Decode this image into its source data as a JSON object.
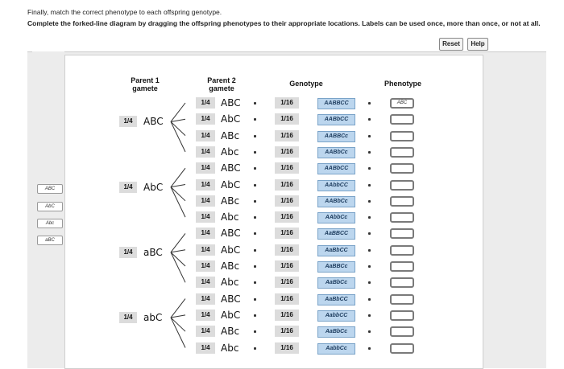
{
  "instructions": {
    "line1": "Finally, match the correct phenotype to each offspring genotype.",
    "line2": "Complete the forked-line diagram by dragging the offspring phenotypes to their appropriate locations. Labels can be used once, more than once, or not at all."
  },
  "buttons": {
    "reset": "Reset",
    "help": "Help"
  },
  "labels": [
    "ABC",
    "AbC",
    "Abc",
    "aBC"
  ],
  "headers": {
    "parent1": "Parent 1\ngamete",
    "parent2": "Parent 2\ngamete",
    "genotype": "Genotype",
    "phenotype": "Phenotype"
  },
  "parent1": [
    {
      "fraction": "1/4",
      "gamete": "ABC"
    },
    {
      "fraction": "1/4",
      "gamete": "AbC"
    },
    {
      "fraction": "1/4",
      "gamete": "aBC"
    },
    {
      "fraction": "1/4",
      "gamete": "abC"
    }
  ],
  "parent2": [
    {
      "fraction": "1/4",
      "gamete": "ABC"
    },
    {
      "fraction": "1/4",
      "gamete": "AbC"
    },
    {
      "fraction": "1/4",
      "gamete": "ABc"
    },
    {
      "fraction": "1/4",
      "gamete": "Abc"
    }
  ],
  "offspring": [
    {
      "fraction": "1/16",
      "genotype": "AABBCC",
      "phenotype": "ABC"
    },
    {
      "fraction": "1/16",
      "genotype": "AABbCC",
      "phenotype": ""
    },
    {
      "fraction": "1/16",
      "genotype": "AABBCc",
      "phenotype": ""
    },
    {
      "fraction": "1/16",
      "genotype": "AABbCc",
      "phenotype": ""
    },
    {
      "fraction": "1/16",
      "genotype": "AABbCC",
      "phenotype": ""
    },
    {
      "fraction": "1/16",
      "genotype": "AAbbCC",
      "phenotype": ""
    },
    {
      "fraction": "1/16",
      "genotype": "AABbCc",
      "phenotype": ""
    },
    {
      "fraction": "1/16",
      "genotype": "AAbbCc",
      "phenotype": ""
    },
    {
      "fraction": "1/16",
      "genotype": "AaBBCC",
      "phenotype": ""
    },
    {
      "fraction": "1/16",
      "genotype": "AaBbCC",
      "phenotype": ""
    },
    {
      "fraction": "1/16",
      "genotype": "AaBBCc",
      "phenotype": ""
    },
    {
      "fraction": "1/16",
      "genotype": "AaBbCc",
      "phenotype": ""
    },
    {
      "fraction": "1/16",
      "genotype": "AaBbCC",
      "phenotype": ""
    },
    {
      "fraction": "1/16",
      "genotype": "AabbCC",
      "phenotype": ""
    },
    {
      "fraction": "1/16",
      "genotype": "AaBbCc",
      "phenotype": ""
    },
    {
      "fraction": "1/16",
      "genotype": "AabbCc",
      "phenotype": ""
    }
  ]
}
